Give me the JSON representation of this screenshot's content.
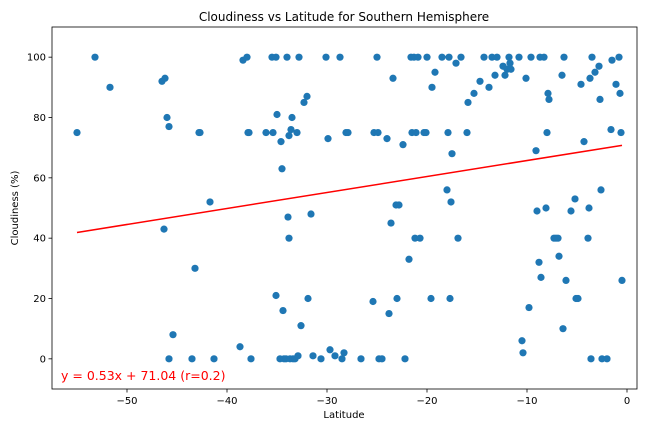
{
  "chart_data": {
    "type": "scatter",
    "title": "Cloudiness vs Latitude for Southern Hemisphere",
    "xlabel": "Latitude",
    "ylabel": "Cloudiness (%)",
    "xlim": [
      -57.5,
      1.0
    ],
    "ylim": [
      -10,
      110
    ],
    "xticks": [
      -50,
      -40,
      -30,
      -20,
      -10,
      0
    ],
    "xtick_labels": [
      "−50",
      "−40",
      "−30",
      "−20",
      "−10",
      "0"
    ],
    "yticks": [
      0,
      20,
      40,
      60,
      80,
      100
    ],
    "ytick_labels": [
      "0",
      "20",
      "40",
      "60",
      "80",
      "100"
    ],
    "grid": false,
    "marker_color": "#1f77b4",
    "line_color": "#ff0000",
    "regression": {
      "slope": 0.53,
      "intercept": 71.04,
      "x_range": [
        -55,
        -0.5
      ]
    },
    "annotation": "y = 0.53x + 71.04 (r=0.2)",
    "points": [
      [
        -55.0,
        75
      ],
      [
        -53.2,
        100
      ],
      [
        -51.7,
        90
      ],
      [
        -46.5,
        92
      ],
      [
        -46.2,
        93
      ],
      [
        -46.3,
        43
      ],
      [
        -46.0,
        80
      ],
      [
        -45.8,
        77
      ],
      [
        -45.8,
        0
      ],
      [
        -45.4,
        8
      ],
      [
        -43.5,
        0
      ],
      [
        -43.2,
        30
      ],
      [
        -42.8,
        75
      ],
      [
        -42.7,
        75
      ],
      [
        -41.7,
        52
      ],
      [
        -41.3,
        0
      ],
      [
        -38.7,
        4
      ],
      [
        -38.4,
        99
      ],
      [
        -38.0,
        100
      ],
      [
        -37.9,
        75
      ],
      [
        -37.8,
        75
      ],
      [
        -37.6,
        0
      ],
      [
        -36.1,
        75
      ],
      [
        -35.5,
        100
      ],
      [
        -35.4,
        75
      ],
      [
        -35.1,
        100
      ],
      [
        -35.1,
        21
      ],
      [
        -35.0,
        81
      ],
      [
        -34.7,
        0
      ],
      [
        -34.6,
        72
      ],
      [
        -34.5,
        63
      ],
      [
        -34.4,
        16
      ],
      [
        -34.3,
        0
      ],
      [
        -34.1,
        0
      ],
      [
        -34.0,
        100
      ],
      [
        -33.9,
        47
      ],
      [
        -33.8,
        74
      ],
      [
        -33.8,
        40
      ],
      [
        -33.7,
        0
      ],
      [
        -33.6,
        76
      ],
      [
        -33.5,
        80
      ],
      [
        -33.4,
        0
      ],
      [
        -33.2,
        0
      ],
      [
        -33.0,
        75
      ],
      [
        -32.9,
        1
      ],
      [
        -32.8,
        100
      ],
      [
        -32.6,
        11
      ],
      [
        -32.3,
        85
      ],
      [
        -32.0,
        87
      ],
      [
        -31.9,
        20
      ],
      [
        -31.6,
        48
      ],
      [
        -31.4,
        1
      ],
      [
        -30.6,
        0
      ],
      [
        -30.1,
        100
      ],
      [
        -29.9,
        73
      ],
      [
        -29.7,
        3
      ],
      [
        -29.2,
        1
      ],
      [
        -28.7,
        100
      ],
      [
        -28.5,
        0
      ],
      [
        -28.3,
        2
      ],
      [
        -28.1,
        75
      ],
      [
        -27.9,
        75
      ],
      [
        -26.6,
        0
      ],
      [
        -25.4,
        19
      ],
      [
        -25.3,
        75
      ],
      [
        -25.0,
        100
      ],
      [
        -24.9,
        75
      ],
      [
        -24.8,
        0
      ],
      [
        -24.5,
        0
      ],
      [
        -24.0,
        73
      ],
      [
        -23.8,
        15
      ],
      [
        -23.6,
        45
      ],
      [
        -23.4,
        93
      ],
      [
        -23.1,
        51
      ],
      [
        -23.0,
        20
      ],
      [
        -22.8,
        51
      ],
      [
        -22.4,
        71
      ],
      [
        -22.2,
        0
      ],
      [
        -21.8,
        33
      ],
      [
        -21.6,
        100
      ],
      [
        -21.5,
        75
      ],
      [
        -21.3,
        100
      ],
      [
        -21.2,
        40
      ],
      [
        -21.1,
        75
      ],
      [
        -20.9,
        100
      ],
      [
        -20.7,
        40
      ],
      [
        -20.3,
        75
      ],
      [
        -20.1,
        75
      ],
      [
        -20.0,
        100
      ],
      [
        -19.6,
        20
      ],
      [
        -19.5,
        90
      ],
      [
        -19.2,
        95
      ],
      [
        -18.5,
        100
      ],
      [
        -18.0,
        56
      ],
      [
        -17.9,
        75
      ],
      [
        -17.8,
        100
      ],
      [
        -17.7,
        20
      ],
      [
        -17.6,
        52
      ],
      [
        -17.5,
        68
      ],
      [
        -17.1,
        98
      ],
      [
        -16.9,
        40
      ],
      [
        -16.6,
        100
      ],
      [
        -16.0,
        75
      ],
      [
        -15.9,
        85
      ],
      [
        -15.3,
        88
      ],
      [
        -14.7,
        92
      ],
      [
        -14.3,
        100
      ],
      [
        -13.8,
        90
      ],
      [
        -13.5,
        100
      ],
      [
        -13.2,
        94
      ],
      [
        -13.0,
        100
      ],
      [
        -12.4,
        97
      ],
      [
        -12.2,
        94
      ],
      [
        -12.0,
        96
      ],
      [
        -11.8,
        100
      ],
      [
        -11.7,
        98
      ],
      [
        -11.6,
        96
      ],
      [
        -10.8,
        100
      ],
      [
        -10.5,
        6
      ],
      [
        -10.4,
        2
      ],
      [
        -10.1,
        93
      ],
      [
        -9.8,
        17
      ],
      [
        -9.6,
        100
      ],
      [
        -9.1,
        69
      ],
      [
        -9.0,
        49
      ],
      [
        -8.8,
        32
      ],
      [
        -8.7,
        100
      ],
      [
        -8.6,
        27
      ],
      [
        -8.3,
        100
      ],
      [
        -8.1,
        50
      ],
      [
        -8.0,
        75
      ],
      [
        -7.9,
        88
      ],
      [
        -7.8,
        86
      ],
      [
        -7.3,
        40
      ],
      [
        -7.1,
        40
      ],
      [
        -6.9,
        40
      ],
      [
        -6.8,
        34
      ],
      [
        -6.5,
        94
      ],
      [
        -6.4,
        10
      ],
      [
        -6.3,
        100
      ],
      [
        -6.1,
        26
      ],
      [
        -5.6,
        49
      ],
      [
        -5.2,
        53
      ],
      [
        -5.1,
        20
      ],
      [
        -4.9,
        20
      ],
      [
        -4.6,
        91
      ],
      [
        -4.3,
        72
      ],
      [
        -3.9,
        40
      ],
      [
        -3.8,
        50
      ],
      [
        -3.7,
        93
      ],
      [
        -3.6,
        0
      ],
      [
        -3.5,
        100
      ],
      [
        -3.2,
        95
      ],
      [
        -2.8,
        97
      ],
      [
        -2.7,
        86
      ],
      [
        -2.6,
        56
      ],
      [
        -2.5,
        0
      ],
      [
        -2.0,
        0
      ],
      [
        -1.6,
        76
      ],
      [
        -1.5,
        99
      ],
      [
        -1.1,
        91
      ],
      [
        -0.8,
        100
      ],
      [
        -0.7,
        88
      ],
      [
        -0.6,
        75
      ],
      [
        -0.5,
        26
      ]
    ]
  }
}
